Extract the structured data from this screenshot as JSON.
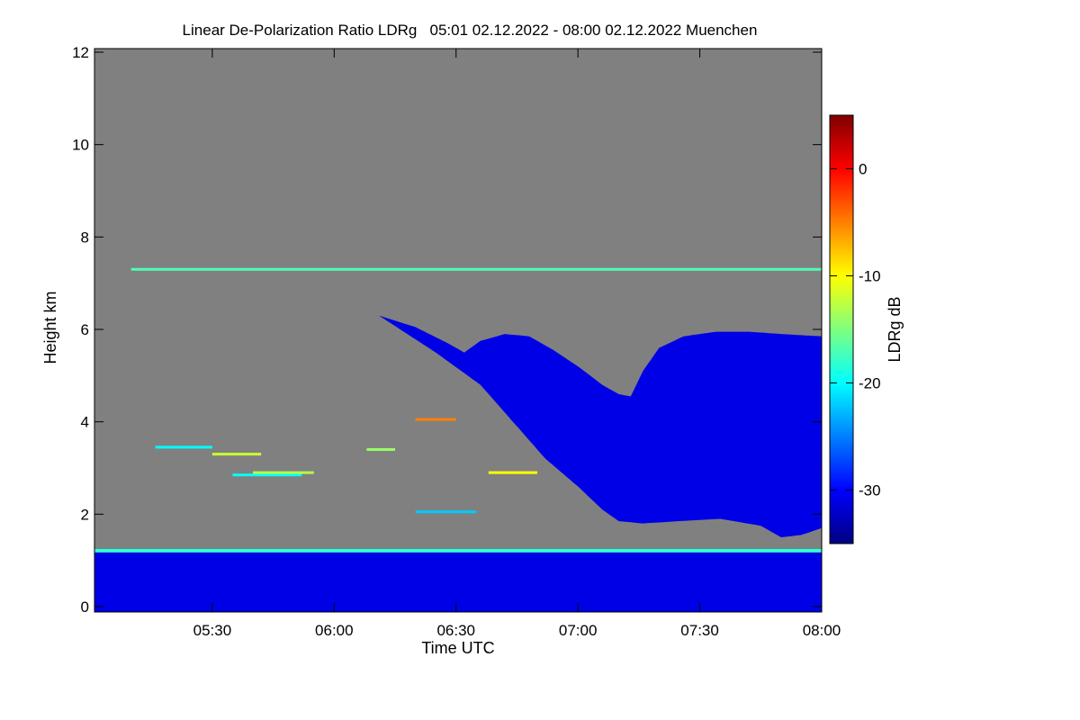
{
  "chart_data": {
    "type": "heatmap",
    "title": "Linear De-Polarization Ratio LDRg   05:01 02.12.2022 - 08:00 02.12.2022 Muenchen",
    "xlabel": "Time UTC",
    "ylabel": "Height km",
    "x_range_minutes_utc": [
      301,
      480
    ],
    "x_ticks": [
      {
        "label": "05:30",
        "minutes": 330
      },
      {
        "label": "06:00",
        "minutes": 360
      },
      {
        "label": "06:30",
        "minutes": 390
      },
      {
        "label": "07:00",
        "minutes": 420
      },
      {
        "label": "07:30",
        "minutes": 450
      },
      {
        "label": "08:00",
        "minutes": 480
      }
    ],
    "ylim": [
      0,
      12
    ],
    "y_ticks": [
      0,
      2,
      4,
      6,
      8,
      10,
      12
    ],
    "colorbar": {
      "label": "LDRg dB",
      "range": [
        -35,
        5
      ],
      "ticks": [
        0,
        -10,
        -20,
        -30
      ],
      "colormap": "jet"
    },
    "background_color": "#808080",
    "cloud_value_dB": -31,
    "cloud_top_km": [
      [
        371,
        6.3
      ],
      [
        380,
        6.05
      ],
      [
        388,
        5.7
      ],
      [
        392,
        5.5
      ],
      [
        396,
        5.75
      ],
      [
        402,
        5.9
      ],
      [
        408,
        5.85
      ],
      [
        414,
        5.55
      ],
      [
        420,
        5.2
      ],
      [
        426,
        4.8
      ],
      [
        430,
        4.6
      ],
      [
        433,
        4.55
      ],
      [
        436,
        5.1
      ],
      [
        440,
        5.6
      ],
      [
        446,
        5.85
      ],
      [
        454,
        5.95
      ],
      [
        462,
        5.95
      ],
      [
        470,
        5.9
      ],
      [
        480,
        5.85
      ]
    ],
    "cloud_base_km": [
      [
        371,
        6.3
      ],
      [
        385,
        5.5
      ],
      [
        396,
        4.8
      ],
      [
        404,
        4.0
      ],
      [
        412,
        3.2
      ],
      [
        420,
        2.6
      ],
      [
        426,
        2.1
      ],
      [
        430,
        1.85
      ],
      [
        436,
        1.8
      ],
      [
        445,
        1.85
      ],
      [
        455,
        1.9
      ],
      [
        465,
        1.75
      ],
      [
        470,
        1.5
      ],
      [
        475,
        1.55
      ],
      [
        480,
        1.7
      ]
    ],
    "boundary_layer_top_km": 1.25,
    "layers": [
      {
        "x": [
          310,
          480
        ],
        "h": 7.3,
        "value_dB": -17
      },
      {
        "x": [
          316,
          330
        ],
        "h": 3.45,
        "value_dB": -20
      },
      {
        "x": [
          330,
          342
        ],
        "h": 3.3,
        "value_dB": -12
      },
      {
        "x": [
          335,
          352
        ],
        "h": 2.85,
        "value_dB": -20
      },
      {
        "x": [
          340,
          355
        ],
        "h": 2.9,
        "value_dB": -13
      },
      {
        "x": [
          398,
          410
        ],
        "h": 2.9,
        "value_dB": -10
      },
      {
        "x": [
          380,
          390
        ],
        "h": 4.05,
        "value_dB": -5
      },
      {
        "x": [
          368,
          375
        ],
        "h": 3.4,
        "value_dB": -14
      },
      {
        "x": [
          380,
          395
        ],
        "h": 2.05,
        "value_dB": -22
      }
    ]
  }
}
